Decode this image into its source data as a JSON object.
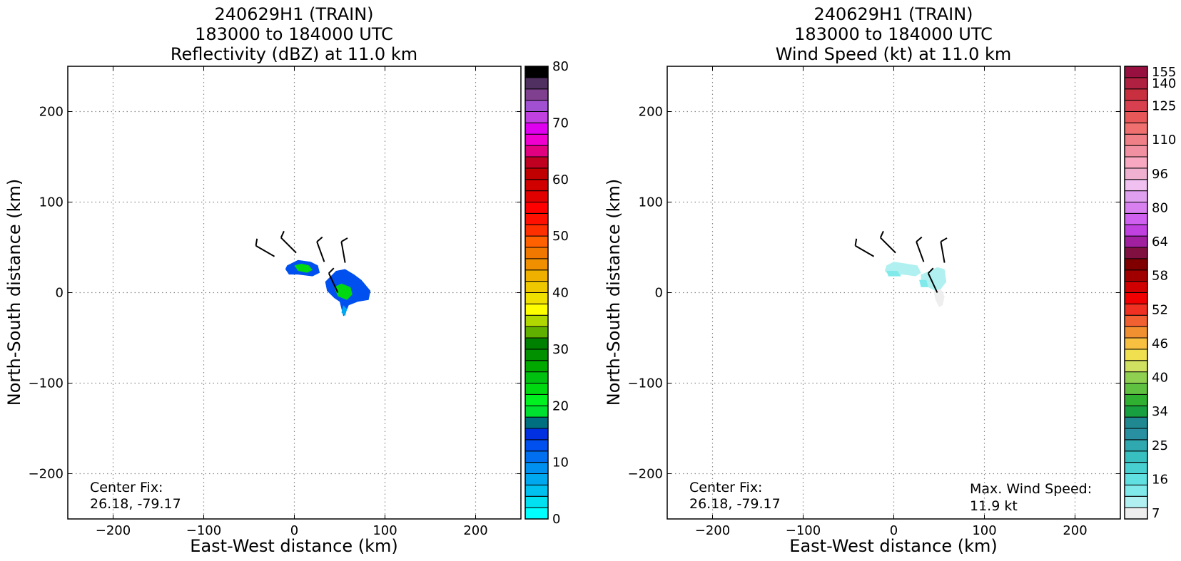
{
  "panels": [
    {
      "title_lines": [
        "240629H1 (TRAIN)",
        "183000 to 184000 UTC",
        "Reflectivity (dBZ) at 11.0 km"
      ],
      "center_fix_label": "Center Fix:",
      "center_fix_value": "26.18, -79.17",
      "max_label": "",
      "max_value": ""
    },
    {
      "title_lines": [
        "240629H1 (TRAIN)",
        "183000 to 184000 UTC",
        "Wind Speed (kt) at 11.0 km"
      ],
      "center_fix_label": "Center Fix:",
      "center_fix_value": "26.18, -79.17",
      "max_label": "Max. Wind Speed:",
      "max_value": "11.9 kt"
    }
  ],
  "chart_data": [
    {
      "type": "heatmap",
      "title": "240629H1 (TRAIN) 183000 to 184000 UTC Reflectivity (dBZ) at 11.0 km",
      "xlabel": "East-West distance (km)",
      "ylabel": "North-South distance (km)",
      "xlim": [
        -250,
        250
      ],
      "ylim": [
        -250,
        250
      ],
      "xticks": [
        -200,
        -100,
        0,
        100,
        200
      ],
      "yticks": [
        -200,
        -100,
        0,
        100,
        200
      ],
      "grid": true,
      "colorbar": {
        "label_ticks": [
          "0",
          "10",
          "20",
          "30",
          "40",
          "50",
          "60",
          "70",
          "80"
        ],
        "range": [
          0,
          80
        ],
        "colors": [
          "#00ffff",
          "#00e0f0",
          "#00c0f0",
          "#00a8f0",
          "#0090f0",
          "#0070f0",
          "#0050f0",
          "#0030e0",
          "#007080",
          "#00e030",
          "#00f020",
          "#00d810",
          "#00c010",
          "#00a800",
          "#009000",
          "#008000",
          "#60b000",
          "#b0d800",
          "#ffff00",
          "#f0e000",
          "#f0c800",
          "#f0b000",
          "#f09000",
          "#f07800",
          "#ff6000",
          "#ff3000",
          "#ff1000",
          "#ff0000",
          "#e00000",
          "#d00000",
          "#c00000",
          "#c00020",
          "#e00080",
          "#f000d0",
          "#e000f0",
          "#c040e0",
          "#a050d0",
          "#804090",
          "#503060",
          "#000000"
        ]
      },
      "blobs": [
        {
          "x": [
            -8,
            4,
            18,
            26,
            28,
            20,
            4,
            -6,
            -10
          ],
          "y": [
            30,
            36,
            34,
            30,
            22,
            18,
            20,
            20,
            26
          ],
          "value": 12
        },
        {
          "x": [
            0,
            8,
            16,
            20,
            14,
            4
          ],
          "y": [
            30,
            32,
            30,
            25,
            22,
            24
          ],
          "value": 22
        },
        {
          "x": [
            34,
            46,
            56,
            66,
            74,
            84,
            82,
            70,
            60,
            56,
            54,
            50,
            44,
            36
          ],
          "y": [
            12,
            24,
            26,
            20,
            14,
            2,
            -8,
            -10,
            -14,
            -24,
            -26,
            -10,
            -6,
            2
          ],
          "value": 12
        },
        {
          "x": [
            44,
            52,
            62,
            64,
            58,
            48
          ],
          "y": [
            6,
            10,
            6,
            -2,
            -8,
            -4
          ],
          "value": 22
        },
        {
          "x": [
            54,
            58,
            56,
            52
          ],
          "y": [
            -14,
            -18,
            -26,
            -22
          ],
          "value": 6
        }
      ],
      "wind_barbs": [
        {
          "x": -22,
          "y": 40,
          "from_deg": 300,
          "speed_kt": 10
        },
        {
          "x": 2,
          "y": 44,
          "from_deg": 315,
          "speed_kt": 10
        },
        {
          "x": 33,
          "y": 34,
          "from_deg": 340,
          "speed_kt": 10
        },
        {
          "x": 56,
          "y": 33,
          "from_deg": 350,
          "speed_kt": 10
        },
        {
          "x": 48,
          "y": 0,
          "from_deg": 335,
          "speed_kt": 10
        }
      ]
    },
    {
      "type": "heatmap",
      "title": "240629H1 (TRAIN) 183000 to 184000 UTC Wind Speed (kt) at 11.0 km",
      "xlabel": "East-West distance (km)",
      "ylabel": "North-South distance (km)",
      "xlim": [
        -250,
        250
      ],
      "ylim": [
        -250,
        250
      ],
      "xticks": [
        -200,
        -100,
        0,
        100,
        200
      ],
      "yticks": [
        -200,
        -100,
        0,
        100,
        200
      ],
      "grid": true,
      "max_wind_speed_kt": 11.9,
      "colorbar": {
        "label_ticks": [
          "7",
          "16",
          "25",
          "34",
          "40",
          "46",
          "52",
          "58",
          "64",
          "80",
          "96",
          "110",
          "125",
          "140",
          "155"
        ],
        "colors": [
          "#eeeeee",
          "#b0f0f0",
          "#80eaea",
          "#60e0e0",
          "#48d0d0",
          "#38c0c0",
          "#30a8b0",
          "#2890a0",
          "#208890",
          "#18a040",
          "#30b030",
          "#60c040",
          "#90d050",
          "#d0e060",
          "#f0e050",
          "#f8c040",
          "#f09030",
          "#f06030",
          "#f03020",
          "#f00000",
          "#d00000",
          "#a00000",
          "#800000",
          "#801040",
          "#a020a0",
          "#c040e0",
          "#d060f0",
          "#d880f0",
          "#e0a0f0",
          "#f0c0f0",
          "#f0b0d0",
          "#f8a8c0",
          "#f090a0",
          "#f08088",
          "#f07070",
          "#e85858",
          "#d84050",
          "#c83040",
          "#b02040",
          "#981040"
        ]
      },
      "blobs": [
        {
          "x": [
            -8,
            0,
            14,
            26,
            30,
            24,
            10,
            -4,
            -10
          ],
          "y": [
            30,
            34,
            32,
            30,
            22,
            18,
            20,
            18,
            24
          ],
          "value": 9
        },
        {
          "x": [
            -8,
            4,
            8,
            -6
          ],
          "y": [
            24,
            24,
            18,
            18
          ],
          "value": 11
        },
        {
          "x": [
            30,
            40,
            48,
            56,
            58,
            52,
            46,
            38,
            30
          ],
          "y": [
            20,
            24,
            28,
            26,
            12,
            4,
            2,
            6,
            10
          ],
          "value": 9
        },
        {
          "x": [
            28,
            36,
            38,
            30
          ],
          "y": [
            14,
            14,
            6,
            6
          ],
          "value": 11
        },
        {
          "x": [
            44,
            52,
            56,
            54,
            50,
            46
          ],
          "y": [
            2,
            4,
            -4,
            -14,
            -16,
            -8
          ],
          "value": 6
        }
      ],
      "wind_barbs": [
        {
          "x": -22,
          "y": 40,
          "from_deg": 300,
          "speed_kt": 10
        },
        {
          "x": 2,
          "y": 44,
          "from_deg": 315,
          "speed_kt": 10
        },
        {
          "x": 33,
          "y": 34,
          "from_deg": 340,
          "speed_kt": 10
        },
        {
          "x": 56,
          "y": 33,
          "from_deg": 350,
          "speed_kt": 10
        },
        {
          "x": 48,
          "y": 0,
          "from_deg": 335,
          "speed_kt": 10
        }
      ]
    }
  ]
}
